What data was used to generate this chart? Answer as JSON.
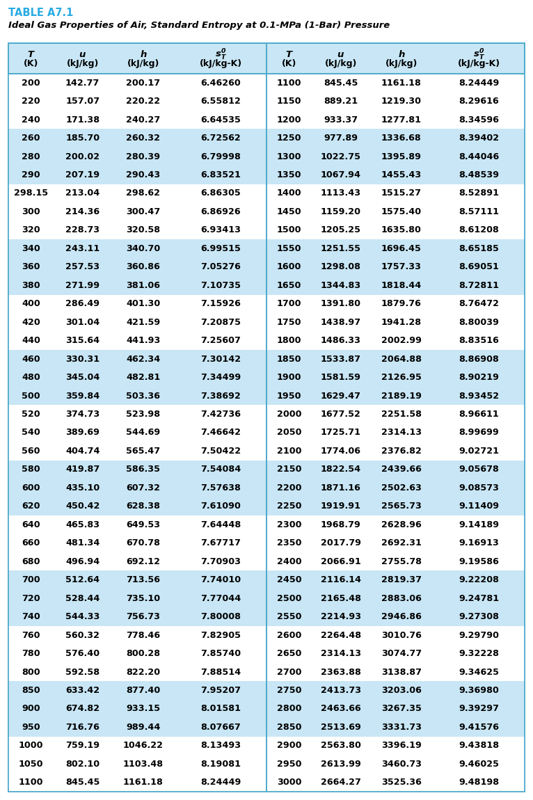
{
  "title_label": "TABLE A7.1",
  "subtitle": "Ideal Gas Properties of Air, Standard Entropy at 0.1-MPa (1-Bar) Pressure",
  "title_color": "#29ABE2",
  "background_color": "#C8E6F5",
  "border_color": "#4DAACC",
  "white_color": "#FFFFFF",
  "rows_left": [
    [
      "200",
      "142.77",
      "200.17",
      "6.46260"
    ],
    [
      "220",
      "157.07",
      "220.22",
      "6.55812"
    ],
    [
      "240",
      "171.38",
      "240.27",
      "6.64535"
    ],
    [
      "260",
      "185.70",
      "260.32",
      "6.72562"
    ],
    [
      "280",
      "200.02",
      "280.39",
      "6.79998"
    ],
    [
      "290",
      "207.19",
      "290.43",
      "6.83521"
    ],
    [
      "298.15",
      "213.04",
      "298.62",
      "6.86305"
    ],
    [
      "300",
      "214.36",
      "300.47",
      "6.86926"
    ],
    [
      "320",
      "228.73",
      "320.58",
      "6.93413"
    ],
    [
      "340",
      "243.11",
      "340.70",
      "6.99515"
    ],
    [
      "360",
      "257.53",
      "360.86",
      "7.05276"
    ],
    [
      "380",
      "271.99",
      "381.06",
      "7.10735"
    ],
    [
      "400",
      "286.49",
      "401.30",
      "7.15926"
    ],
    [
      "420",
      "301.04",
      "421.59",
      "7.20875"
    ],
    [
      "440",
      "315.64",
      "441.93",
      "7.25607"
    ],
    [
      "460",
      "330.31",
      "462.34",
      "7.30142"
    ],
    [
      "480",
      "345.04",
      "482.81",
      "7.34499"
    ],
    [
      "500",
      "359.84",
      "503.36",
      "7.38692"
    ],
    [
      "520",
      "374.73",
      "523.98",
      "7.42736"
    ],
    [
      "540",
      "389.69",
      "544.69",
      "7.46642"
    ],
    [
      "560",
      "404.74",
      "565.47",
      "7.50422"
    ],
    [
      "580",
      "419.87",
      "586.35",
      "7.54084"
    ],
    [
      "600",
      "435.10",
      "607.32",
      "7.57638"
    ],
    [
      "620",
      "450.42",
      "628.38",
      "7.61090"
    ],
    [
      "640",
      "465.83",
      "649.53",
      "7.64448"
    ],
    [
      "660",
      "481.34",
      "670.78",
      "7.67717"
    ],
    [
      "680",
      "496.94",
      "692.12",
      "7.70903"
    ],
    [
      "700",
      "512.64",
      "713.56",
      "7.74010"
    ],
    [
      "720",
      "528.44",
      "735.10",
      "7.77044"
    ],
    [
      "740",
      "544.33",
      "756.73",
      "7.80008"
    ],
    [
      "760",
      "560.32",
      "778.46",
      "7.82905"
    ],
    [
      "780",
      "576.40",
      "800.28",
      "7.85740"
    ],
    [
      "800",
      "592.58",
      "822.20",
      "7.88514"
    ],
    [
      "850",
      "633.42",
      "877.40",
      "7.95207"
    ],
    [
      "900",
      "674.82",
      "933.15",
      "8.01581"
    ],
    [
      "950",
      "716.76",
      "989.44",
      "8.07667"
    ],
    [
      "1000",
      "759.19",
      "1046.22",
      "8.13493"
    ],
    [
      "1050",
      "802.10",
      "1103.48",
      "8.19081"
    ],
    [
      "1100",
      "845.45",
      "1161.18",
      "8.24449"
    ]
  ],
  "rows_right": [
    [
      "1100",
      "845.45",
      "1161.18",
      "8.24449"
    ],
    [
      "1150",
      "889.21",
      "1219.30",
      "8.29616"
    ],
    [
      "1200",
      "933.37",
      "1277.81",
      "8.34596"
    ],
    [
      "1250",
      "977.89",
      "1336.68",
      "8.39402"
    ],
    [
      "1300",
      "1022.75",
      "1395.89",
      "8.44046"
    ],
    [
      "1350",
      "1067.94",
      "1455.43",
      "8.48539"
    ],
    [
      "1400",
      "1113.43",
      "1515.27",
      "8.52891"
    ],
    [
      "1450",
      "1159.20",
      "1575.40",
      "8.57111"
    ],
    [
      "1500",
      "1205.25",
      "1635.80",
      "8.61208"
    ],
    [
      "1550",
      "1251.55",
      "1696.45",
      "8.65185"
    ],
    [
      "1600",
      "1298.08",
      "1757.33",
      "8.69051"
    ],
    [
      "1650",
      "1344.83",
      "1818.44",
      "8.72811"
    ],
    [
      "1700",
      "1391.80",
      "1879.76",
      "8.76472"
    ],
    [
      "1750",
      "1438.97",
      "1941.28",
      "8.80039"
    ],
    [
      "1800",
      "1486.33",
      "2002.99",
      "8.83516"
    ],
    [
      "1850",
      "1533.87",
      "2064.88",
      "8.86908"
    ],
    [
      "1900",
      "1581.59",
      "2126.95",
      "8.90219"
    ],
    [
      "1950",
      "1629.47",
      "2189.19",
      "8.93452"
    ],
    [
      "2000",
      "1677.52",
      "2251.58",
      "8.96611"
    ],
    [
      "2050",
      "1725.71",
      "2314.13",
      "8.99699"
    ],
    [
      "2100",
      "1774.06",
      "2376.82",
      "9.02721"
    ],
    [
      "2150",
      "1822.54",
      "2439.66",
      "9.05678"
    ],
    [
      "2200",
      "1871.16",
      "2502.63",
      "9.08573"
    ],
    [
      "2250",
      "1919.91",
      "2565.73",
      "9.11409"
    ],
    [
      "2300",
      "1968.79",
      "2628.96",
      "9.14189"
    ],
    [
      "2350",
      "2017.79",
      "2692.31",
      "9.16913"
    ],
    [
      "2400",
      "2066.91",
      "2755.78",
      "9.19586"
    ],
    [
      "2450",
      "2116.14",
      "2819.37",
      "9.22208"
    ],
    [
      "2500",
      "2165.48",
      "2883.06",
      "9.24781"
    ],
    [
      "2550",
      "2214.93",
      "2946.86",
      "9.27308"
    ],
    [
      "2600",
      "2264.48",
      "3010.76",
      "9.29790"
    ],
    [
      "2650",
      "2314.13",
      "3074.77",
      "9.32228"
    ],
    [
      "2700",
      "2363.88",
      "3138.87",
      "9.34625"
    ],
    [
      "2750",
      "2413.73",
      "3203.06",
      "9.36980"
    ],
    [
      "2800",
      "2463.66",
      "3267.35",
      "9.39297"
    ],
    [
      "2850",
      "2513.69",
      "3331.73",
      "9.41576"
    ],
    [
      "2900",
      "2563.80",
      "3396.19",
      "9.43818"
    ],
    [
      "2950",
      "2613.99",
      "3460.73",
      "9.46025"
    ],
    [
      "3000",
      "2664.27",
      "3525.36",
      "9.48198"
    ]
  ],
  "row_bg_pattern": [
    0,
    0,
    0,
    1,
    1,
    1,
    0,
    0,
    0,
    1,
    1,
    1,
    0,
    0,
    0,
    1,
    1,
    1,
    0,
    0,
    0,
    1,
    1,
    1,
    0,
    0,
    0,
    1,
    1,
    1,
    0,
    0,
    0,
    1,
    1,
    1,
    0,
    0,
    0
  ]
}
